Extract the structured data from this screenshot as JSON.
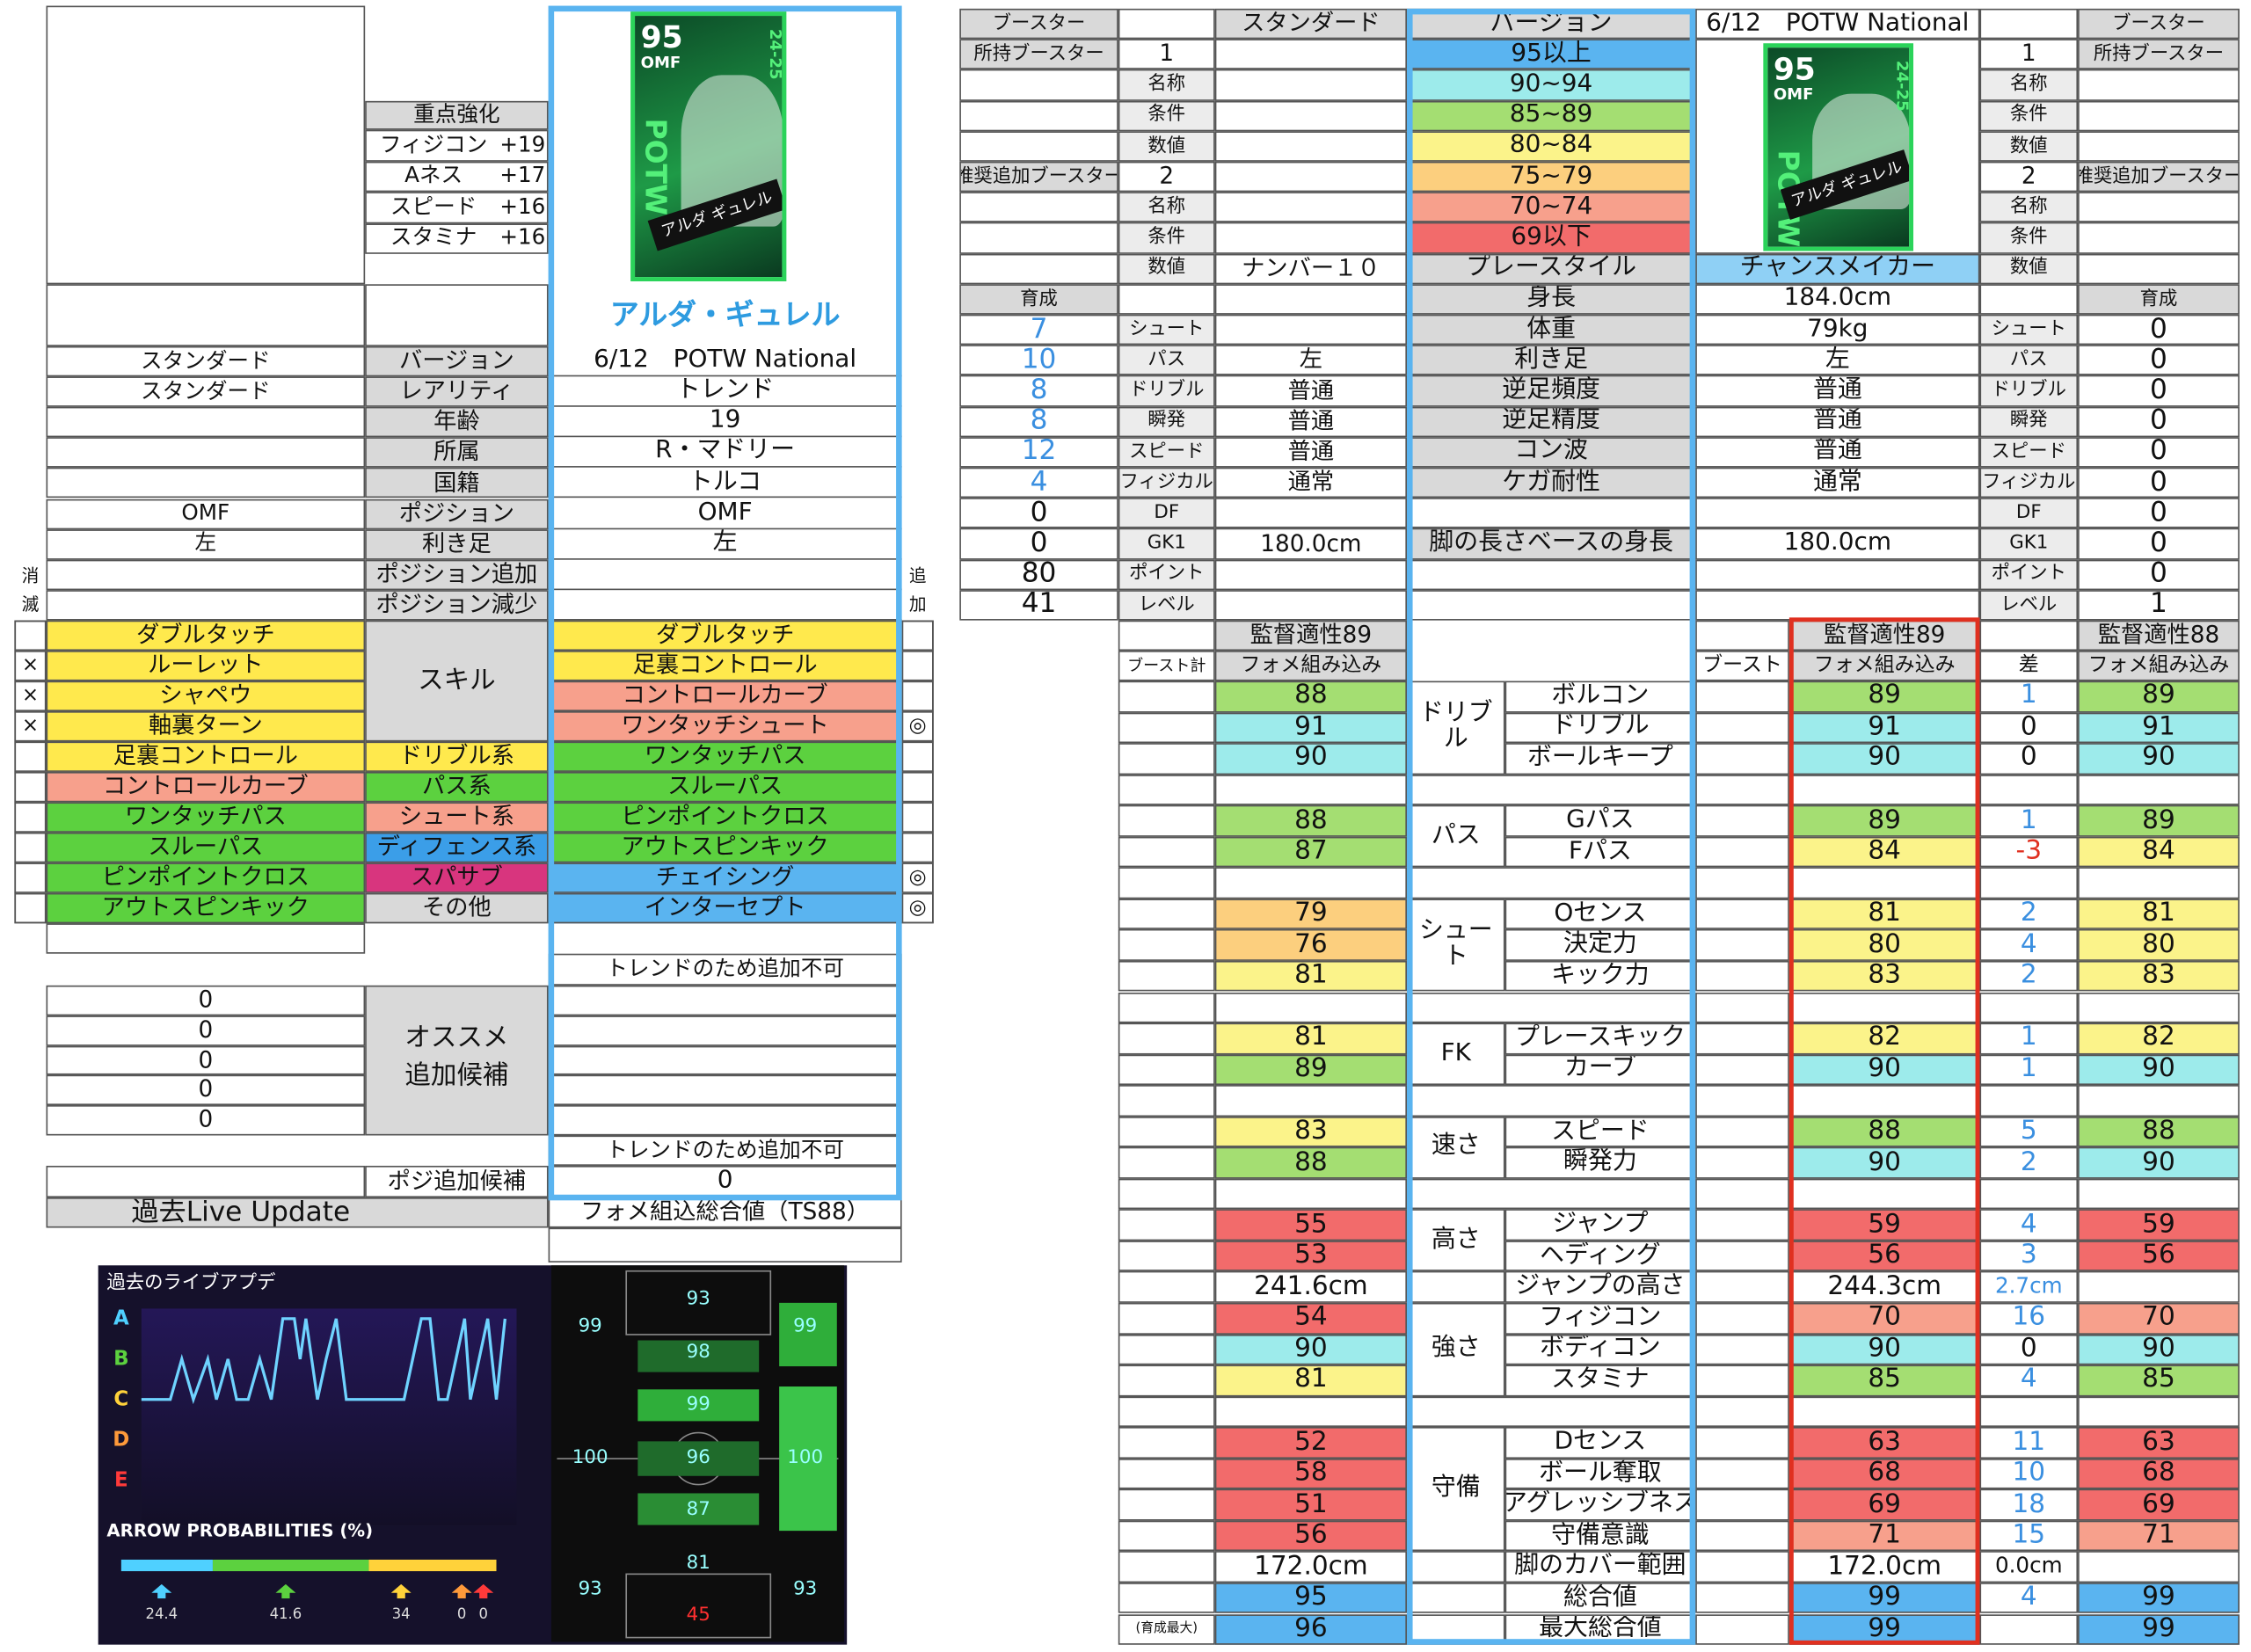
{
  "card": {
    "rating": "95",
    "position": "OMF",
    "badge": "POTW",
    "season": "24-25",
    "name": "アルダ ギュレル"
  },
  "left": {
    "focus": {
      "title": "重点強化",
      "rows": [
        [
          "フィジコン",
          "+19"
        ],
        [
          "Aネス",
          "+17"
        ],
        [
          "スピード",
          "+16"
        ],
        [
          "スタミナ",
          "+16"
        ]
      ]
    },
    "player_name": "アルダ・ギュレル",
    "info": [
      [
        "スタンダード",
        "バージョン",
        "6/12　POTW National"
      ],
      [
        "スタンダード",
        "レアリティ",
        "トレンド"
      ],
      [
        null,
        "年齢",
        "19"
      ],
      [
        null,
        "所属",
        "R・マドリー"
      ],
      [
        null,
        "国籍",
        "トルコ"
      ],
      [
        "OMF",
        "ポジション",
        "OMF"
      ],
      [
        "左",
        "利き足",
        "左"
      ],
      [
        null,
        "ポジション追加",
        null
      ],
      [
        null,
        "ポジション減少",
        null
      ]
    ],
    "side_left": [
      "消",
      "滅"
    ],
    "side_right": [
      "追",
      "加"
    ],
    "skills": {
      "label": "スキル",
      "current": [
        {
          "mark": null,
          "name": "ダブルタッチ",
          "color": "#ffe94d"
        },
        {
          "mark": "×",
          "name": "ルーレット",
          "color": "#ffe94d"
        },
        {
          "mark": "×",
          "name": "シャペウ",
          "color": "#ffe94d"
        },
        {
          "mark": "×",
          "name": "軸裏ターン",
          "color": "#ffe94d"
        },
        {
          "mark": null,
          "name": "足裏コントロール",
          "color": "#ffe94d"
        },
        {
          "mark": null,
          "name": "コントロールカーブ",
          "color": "#f7a08c"
        },
        {
          "mark": null,
          "name": "ワンタッチパス",
          "color": "#5cd13f"
        },
        {
          "mark": null,
          "name": "スルーパス",
          "color": "#5cd13f"
        },
        {
          "mark": null,
          "name": "ピンポイントクロス",
          "color": "#5cd13f"
        },
        {
          "mark": null,
          "name": "アウトスピンキック",
          "color": "#5cd13f"
        }
      ],
      "categories": [
        {
          "name": "ドリブル系",
          "color": "#ffe94d"
        },
        {
          "name": "パス系",
          "color": "#5cd13f"
        },
        {
          "name": "シュート系",
          "color": "#f7a08c"
        },
        {
          "name": "ディフェンス系",
          "color": "#3b9ee8"
        },
        {
          "name": "スパサブ",
          "color": "#d8357e"
        },
        {
          "name": "その他",
          "color": "#d9d9d9"
        }
      ],
      "added": [
        {
          "mark": null,
          "name": "ダブルタッチ",
          "color": "#ffe94d"
        },
        {
          "mark": null,
          "name": "足裏コントロール",
          "color": "#ffe94d"
        },
        {
          "mark": null,
          "name": "コントロールカーブ",
          "color": "#f7a08c"
        },
        {
          "mark": "◎",
          "name": "ワンタッチシュート",
          "color": "#f7a08c"
        },
        {
          "mark": null,
          "name": "ワンタッチパス",
          "color": "#5cd13f"
        },
        {
          "mark": null,
          "name": "スルーパス",
          "color": "#5cd13f"
        },
        {
          "mark": null,
          "name": "ピンポイントクロス",
          "color": "#5cd13f"
        },
        {
          "mark": null,
          "name": "アウトスピンキック",
          "color": "#5cd13f"
        },
        {
          "mark": "◎",
          "name": "チェイシング",
          "color": "#5ab4f0"
        },
        {
          "mark": "◎",
          "name": "インターセプト",
          "color": "#5ab4f0"
        }
      ]
    },
    "trend_note_1": "トレンドのため追加不可",
    "recommend": {
      "label": [
        "オススメ",
        "追加候補"
      ],
      "values": [
        0,
        0,
        0,
        0,
        0
      ]
    },
    "trend_note_2": "トレンドのため追加不可",
    "position_candidates": {
      "label": "ポジ追加候補",
      "value": 0
    },
    "past_live": "過去Live Update",
    "formation_total": "フォメ組込総合値（TS88）",
    "live_chart": {
      "title": "過去のライブアプデ",
      "grades": [
        "A",
        "B",
        "C",
        "D",
        "E"
      ],
      "probability_title": "ARROW PROBABILITIES (%)",
      "probabilities": [
        24.4,
        41.6,
        34,
        0,
        0
      ]
    },
    "formation": [
      93,
      99,
      99,
      98,
      99,
      100,
      96,
      100,
      87,
      81,
      93,
      93,
      45
    ]
  },
  "right": {
    "color_scale": [
      {
        "label": "95以上",
        "color": "#5ab4f0",
        "min": 95
      },
      {
        "label": "90~94",
        "color": "#9debeb",
        "min": 90
      },
      {
        "label": "85~89",
        "color": "#a4de72",
        "min": 85
      },
      {
        "label": "80~84",
        "color": "#fbf38a",
        "min": 80
      },
      {
        "label": "75~79",
        "color": "#fccf7e",
        "min": 75
      },
      {
        "label": "70~74",
        "color": "#f7a08c",
        "min": 70
      },
      {
        "label": "69以下",
        "color": "#f26b6b"
      }
    ],
    "top_rows": [
      [
        "ブースター",
        null,
        "スタンダード",
        "バージョン",
        "6/12　POTW National",
        null,
        "ブースター"
      ],
      [
        "所持ブースター",
        1,
        null,
        null,
        null,
        1,
        "所持ブースター"
      ],
      [
        null,
        "名称",
        null,
        null,
        null,
        "名称",
        null
      ],
      [
        null,
        "条件",
        null,
        null,
        null,
        "条件",
        null
      ],
      [
        null,
        "数値",
        null,
        null,
        null,
        "数値",
        null
      ],
      [
        "推奨追加ブースター",
        2,
        null,
        null,
        null,
        2,
        "推奨追加ブースター"
      ],
      [
        null,
        "名称",
        null,
        null,
        null,
        "名称",
        null
      ],
      [
        null,
        "条件",
        null,
        null,
        null,
        "条件",
        null
      ],
      [
        null,
        "数値",
        "ナンバー１０",
        "プレースタイル",
        "チャンスメイカー",
        "数値",
        null
      ],
      [
        "育成",
        null,
        null,
        "身長",
        "184.0cm",
        null,
        "育成"
      ],
      [
        7,
        "シュート",
        null,
        "体重",
        "79kg",
        "シュート",
        0
      ],
      [
        10,
        "パス",
        "左",
        "利き足",
        "左",
        "パス",
        0
      ],
      [
        8,
        "ドリブル",
        "普通",
        "逆足頻度",
        "普通",
        "ドリブル",
        0
      ],
      [
        8,
        "瞬発",
        "普通",
        "逆足精度",
        "普通",
        "瞬発",
        0
      ],
      [
        12,
        "スピード",
        "普通",
        "コン波",
        "普通",
        "スピード",
        0
      ],
      [
        4,
        "フィジカル",
        "通常",
        "ケガ耐性",
        "通常",
        "フィジカル",
        0
      ],
      [
        0,
        "DF",
        null,
        null,
        null,
        "DF",
        0
      ],
      [
        0,
        "GK1",
        "180.0cm",
        "脚の長さベースの身長",
        "180.0cm",
        "GK1",
        0
      ],
      [
        80,
        "ポイント",
        null,
        null,
        null,
        "ポイント",
        0
      ],
      [
        41,
        "レベル",
        null,
        null,
        null,
        "レベル",
        1
      ]
    ],
    "aptitude": [
      "監督適性89",
      "監督適性89",
      "監督適性88"
    ],
    "columns": {
      "boost_total": "ブースト計",
      "formation_left": "フォメ組み込み",
      "boost": "ブースト",
      "formation_mid": "フォメ組み込み",
      "diff": "差",
      "formation_right": "フォメ組み込み"
    },
    "stats": [
      {
        "group": "ドリブル",
        "rows": [
          {
            "label": "ボルコン",
            "base": 88,
            "total": 89,
            "diff": 1,
            "h88": 89
          },
          {
            "label": "ドリブル",
            "base": 91,
            "total": 91,
            "diff": 0,
            "h88": 91
          },
          {
            "label": "ボールキープ",
            "base": 90,
            "total": 90,
            "diff": 0,
            "h88": 90
          }
        ]
      },
      {
        "group": "パス",
        "rows": [
          {
            "label": "Gパス",
            "base": 88,
            "total": 89,
            "diff": 1,
            "h88": 89
          },
          {
            "label": "Fパス",
            "base": 87,
            "total": 84,
            "diff": -3,
            "h88": 84
          }
        ]
      },
      {
        "group": "シュート",
        "rows": [
          {
            "label": "Oセンス",
            "base": 79,
            "total": 81,
            "diff": 2,
            "h88": 81
          },
          {
            "label": "決定力",
            "base": 76,
            "total": 80,
            "diff": 4,
            "h88": 80
          },
          {
            "label": "キック力",
            "base": 81,
            "total": 83,
            "diff": 2,
            "h88": 83
          }
        ]
      },
      {
        "group": "FK",
        "rows": [
          {
            "label": "プレースキック",
            "base": 81,
            "total": 82,
            "diff": 1,
            "h88": 82
          },
          {
            "label": "カーブ",
            "base": 89,
            "total": 90,
            "diff": 1,
            "h88": 90
          }
        ]
      },
      {
        "group": "速さ",
        "rows": [
          {
            "label": "スピード",
            "base": 83,
            "total": 88,
            "diff": 5,
            "h88": 88
          },
          {
            "label": "瞬発力",
            "base": 88,
            "total": 90,
            "diff": 2,
            "h88": 90
          }
        ]
      },
      {
        "group": "高さ",
        "rows": [
          {
            "label": "ジャンプ",
            "base": 55,
            "total": 59,
            "diff": 4,
            "h88": 59
          },
          {
            "label": "ヘディング",
            "base": 53,
            "total": 56,
            "diff": 3,
            "h88": 56
          }
        ]
      },
      {
        "label": "ジャンプの高さ",
        "base": "241.6cm",
        "total": "244.3cm",
        "diff": "2.7cm",
        "h88": null
      },
      {
        "group": "強さ",
        "rows": [
          {
            "label": "フィジコン",
            "base": 54,
            "total": 70,
            "diff": 16,
            "h88": 70
          },
          {
            "label": "ボディコン",
            "base": 90,
            "total": 90,
            "diff": 0,
            "h88": 90
          },
          {
            "label": "スタミナ",
            "base": 81,
            "total": 85,
            "diff": 4,
            "h88": 85
          }
        ]
      },
      {
        "group": "守備",
        "rows": [
          {
            "label": "Dセンス",
            "base": 52,
            "total": 63,
            "diff": 11,
            "h88": 63
          },
          {
            "label": "ボール奪取",
            "base": 58,
            "total": 68,
            "diff": 10,
            "h88": 68
          },
          {
            "label": "アグレッシブネス",
            "base": 51,
            "total": 69,
            "diff": 18,
            "h88": 69
          },
          {
            "label": "守備意識",
            "base": 56,
            "total": 71,
            "diff": 15,
            "h88": 71
          }
        ]
      },
      {
        "label": "脚のカバー範囲",
        "base": "172.0cm",
        "total": "172.0cm",
        "diff": "0.0cm",
        "h88": null
      },
      {
        "label": "総合値",
        "base": 95,
        "total": 99,
        "diff": 4,
        "h88": 99
      },
      {
        "note": "(育成最大)",
        "label": "最大総合値",
        "base": 96,
        "total": 99,
        "diff": null,
        "h88": 99
      }
    ]
  }
}
